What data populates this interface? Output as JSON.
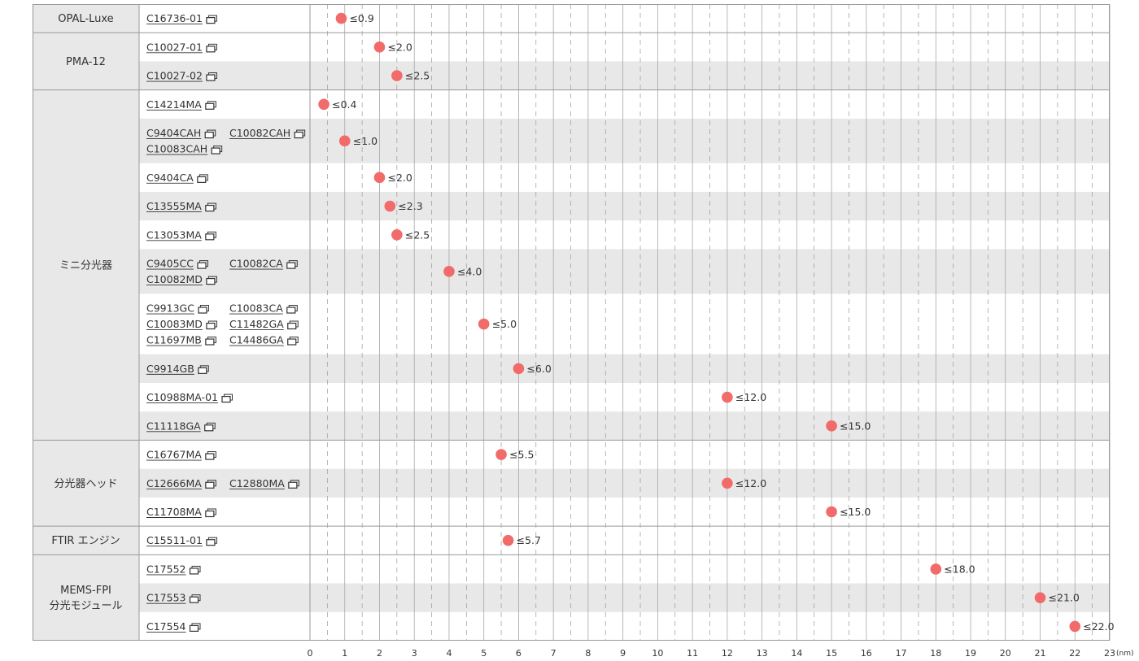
{
  "chart_data": {
    "type": "scatter",
    "unit": "(nm)",
    "xlim": [
      0,
      23
    ],
    "ticks": [
      0,
      1,
      2,
      3,
      4,
      5,
      6,
      7,
      8,
      9,
      10,
      11,
      12,
      13,
      14,
      15,
      16,
      17,
      18,
      19,
      20,
      21,
      22,
      23
    ],
    "colors": {
      "marker": "#f26b6b",
      "band": "#e8e8e8",
      "category_bg": "#e8e8e8",
      "grid": "#bbbbbb"
    },
    "groups": [
      {
        "name": [
          "OPAL-Luxe"
        ],
        "rows": [
          {
            "models": [
              "C16736-01"
            ],
            "value": 0.9,
            "label": "≤0.9"
          }
        ]
      },
      {
        "name": [
          "PMA-12"
        ],
        "rows": [
          {
            "models": [
              "C10027-01"
            ],
            "value": 2.0,
            "label": "≤2.0"
          },
          {
            "models": [
              "C10027-02"
            ],
            "value": 2.5,
            "label": "≤2.5"
          }
        ]
      },
      {
        "name": [
          "ミニ分光器"
        ],
        "rows": [
          {
            "models": [
              "C14214MA"
            ],
            "value": 0.4,
            "label": "≤0.4"
          },
          {
            "models": [
              "C9404CAH",
              "C10082CAH",
              "C10083CAH"
            ],
            "value": 1.0,
            "label": "≤1.0"
          },
          {
            "models": [
              "C9404CA"
            ],
            "value": 2.0,
            "label": "≤2.0"
          },
          {
            "models": [
              "C13555MA"
            ],
            "value": 2.3,
            "label": "≤2.3"
          },
          {
            "models": [
              "C13053MA"
            ],
            "value": 2.5,
            "label": "≤2.5"
          },
          {
            "models": [
              "C9405CC",
              "C10082CA",
              "C10082MD"
            ],
            "value": 4.0,
            "label": "≤4.0"
          },
          {
            "models": [
              "C9913GC",
              "C10083CA",
              "C10083MD",
              "C11482GA",
              "C11697MB",
              "C14486GA"
            ],
            "value": 5.0,
            "label": "≤5.0"
          },
          {
            "models": [
              "C9914GB"
            ],
            "value": 6.0,
            "label": "≤6.0"
          },
          {
            "models": [
              "C10988MA-01"
            ],
            "value": 12.0,
            "label": "≤12.0"
          },
          {
            "models": [
              "C11118GA"
            ],
            "value": 15.0,
            "label": "≤15.0"
          }
        ]
      },
      {
        "name": [
          "分光器ヘッド"
        ],
        "rows": [
          {
            "models": [
              "C16767MA"
            ],
            "value": 5.5,
            "label": "≤5.5"
          },
          {
            "models": [
              "C12666MA",
              "C12880MA"
            ],
            "value": 12.0,
            "label": "≤12.0"
          },
          {
            "models": [
              "C11708MA"
            ],
            "value": 15.0,
            "label": "≤15.0"
          }
        ]
      },
      {
        "name": [
          "FTIR エンジン"
        ],
        "rows": [
          {
            "models": [
              "C15511-01"
            ],
            "value": 5.7,
            "label": "≤5.7"
          }
        ]
      },
      {
        "name": [
          "MEMS-FPI",
          "分光モジュール"
        ],
        "rows": [
          {
            "models": [
              "C17552"
            ],
            "value": 18.0,
            "label": "≤18.0"
          },
          {
            "models": [
              "C17553"
            ],
            "value": 21.0,
            "label": "≤21.0"
          },
          {
            "models": [
              "C17554"
            ],
            "value": 22.0,
            "label": "≤22.0"
          }
        ]
      }
    ]
  }
}
